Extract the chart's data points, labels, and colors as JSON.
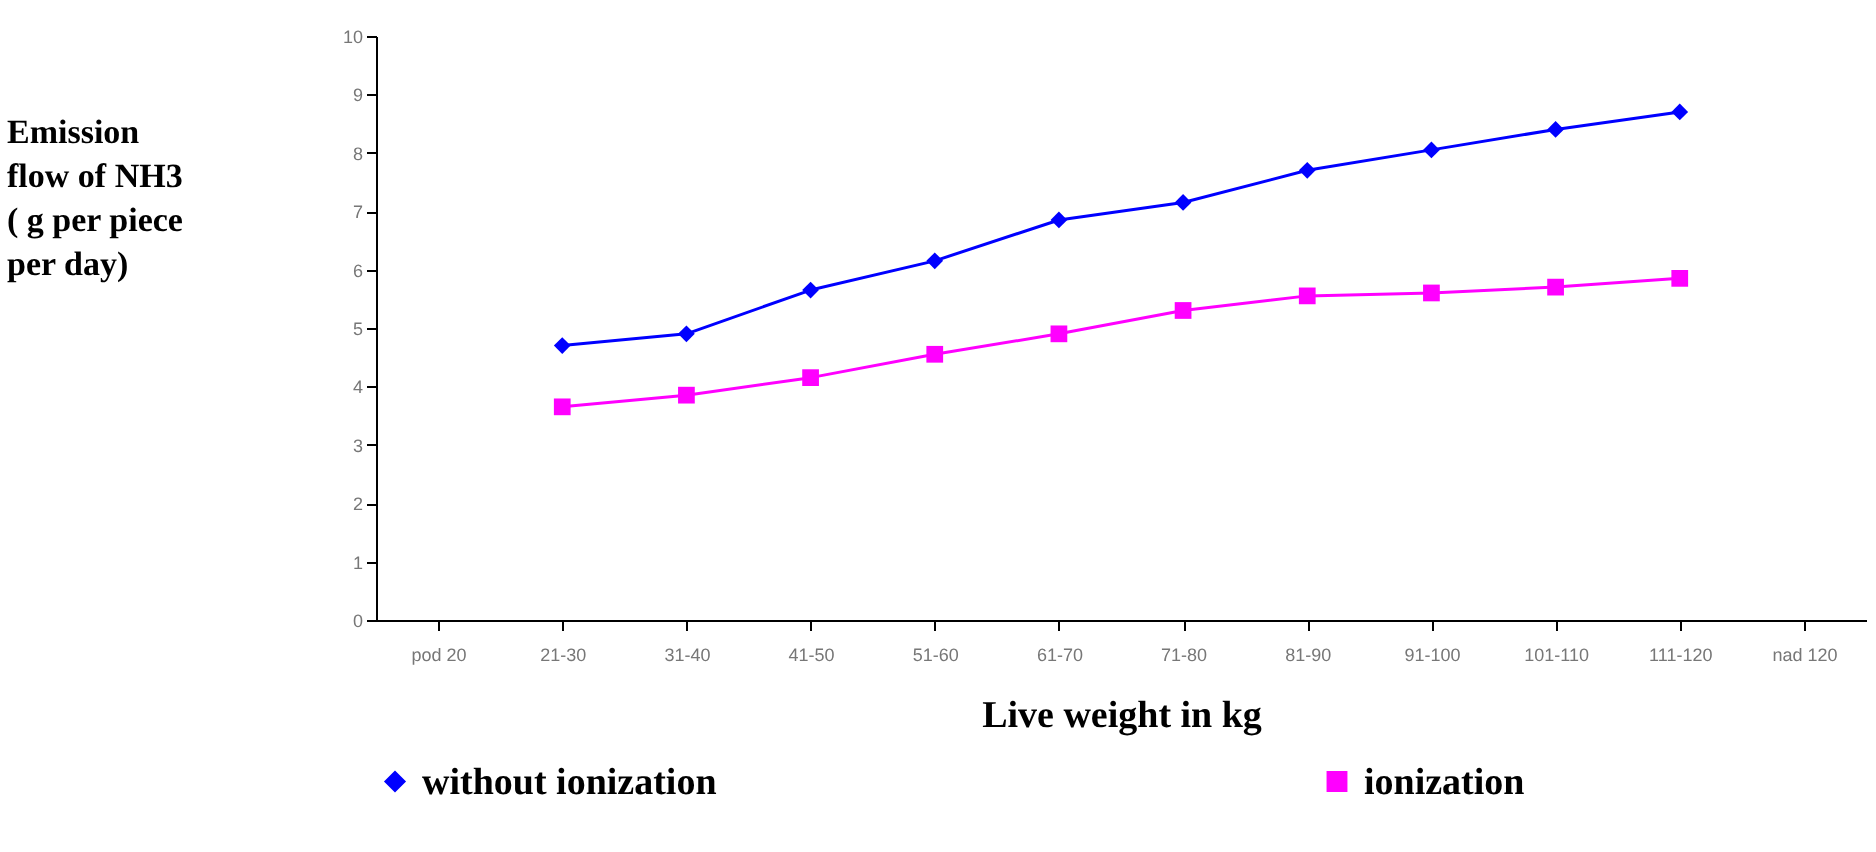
{
  "chart_data": {
    "type": "line",
    "xlabel": "Live weight in kg",
    "ylabel": "Emission\nflow of NH3\n( g per piece\nper day)",
    "categories": [
      "pod 20",
      "21-30",
      "31-40",
      "41-50",
      "51-60",
      "61-70",
      "71-80",
      "81-90",
      "91-100",
      "101-110",
      "111-120",
      "nad 120"
    ],
    "series": [
      {
        "name": "without ionization",
        "color": "#0000ff",
        "marker": "diamond",
        "values": [
          null,
          4.7,
          4.9,
          5.65,
          6.15,
          6.85,
          7.15,
          7.7,
          8.05,
          8.4,
          8.7,
          null
        ]
      },
      {
        "name": "ionization",
        "color": "#ff00ff",
        "marker": "square",
        "values": [
          null,
          3.65,
          3.85,
          4.15,
          4.55,
          4.9,
          5.3,
          5.55,
          5.6,
          5.7,
          5.85,
          null
        ]
      }
    ],
    "ylim": [
      0,
      10
    ],
    "yticks": [
      0,
      1,
      2,
      3,
      4,
      5,
      6,
      7,
      8,
      9,
      10
    ],
    "grid": false,
    "legend": "bottom"
  }
}
